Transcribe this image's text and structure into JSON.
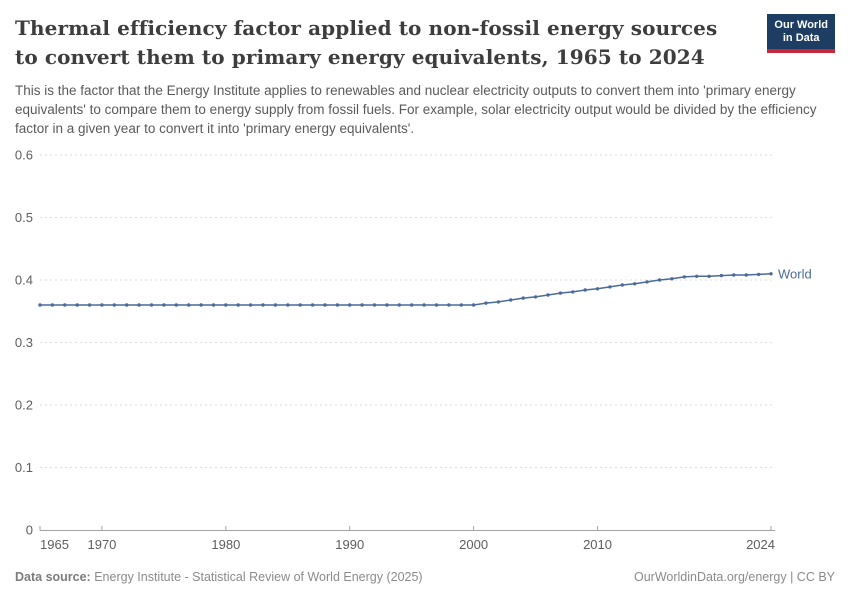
{
  "header": {
    "title_lines": [
      "Thermal efficiency factor applied to non-fossil energy sources",
      "to convert them to primary energy equivalents, 1965 to 2024"
    ],
    "subtitle": "This is the factor that the Energy Institute applies to renewables and nuclear electricity outputs to convert them into 'primary energy equivalents' to compare them to energy supply from fossil fuels. For example, solar electricity output would be divided by the efficiency factor in a given year to convert it into 'primary energy equivalents'."
  },
  "logo": {
    "line1": "Our World",
    "line2": "in Data",
    "background_color": "#1d3d63",
    "accent_color": "#c7273a"
  },
  "chart_data": {
    "type": "line",
    "title": "Thermal efficiency factor applied to non-fossil energy sources to convert them to primary energy equivalents, 1965 to 2024",
    "xlabel": "",
    "ylabel": "",
    "xlim": [
      1965,
      2024
    ],
    "ylim": [
      0,
      0.6
    ],
    "grid": "horizontal-dashed",
    "legend_position": "end-of-line-label",
    "yticks": [
      0,
      0.1,
      0.2,
      0.3,
      0.4,
      0.5,
      0.6
    ],
    "ytick_labels": [
      "0",
      "0.1",
      "0.2",
      "0.3",
      "0.4",
      "0.5",
      "0.6"
    ],
    "xticks": [
      1965,
      1970,
      1980,
      1990,
      2000,
      2010,
      2024
    ],
    "series": [
      {
        "name": "World",
        "color": "#4c6a9c",
        "x": [
          1965,
          1966,
          1967,
          1968,
          1969,
          1970,
          1971,
          1972,
          1973,
          1974,
          1975,
          1976,
          1977,
          1978,
          1979,
          1980,
          1981,
          1982,
          1983,
          1984,
          1985,
          1986,
          1987,
          1988,
          1989,
          1990,
          1991,
          1992,
          1993,
          1994,
          1995,
          1996,
          1997,
          1998,
          1999,
          2000,
          2001,
          2002,
          2003,
          2004,
          2005,
          2006,
          2007,
          2008,
          2009,
          2010,
          2011,
          2012,
          2013,
          2014,
          2015,
          2016,
          2017,
          2018,
          2019,
          2020,
          2021,
          2022,
          2023,
          2024
        ],
        "values": [
          0.36,
          0.36,
          0.36,
          0.36,
          0.36,
          0.36,
          0.36,
          0.36,
          0.36,
          0.36,
          0.36,
          0.36,
          0.36,
          0.36,
          0.36,
          0.36,
          0.36,
          0.36,
          0.36,
          0.36,
          0.36,
          0.36,
          0.36,
          0.36,
          0.36,
          0.36,
          0.36,
          0.36,
          0.36,
          0.36,
          0.36,
          0.36,
          0.36,
          0.36,
          0.36,
          0.36,
          0.363,
          0.365,
          0.368,
          0.371,
          0.373,
          0.376,
          0.379,
          0.381,
          0.384,
          0.386,
          0.389,
          0.392,
          0.394,
          0.397,
          0.4,
          0.402,
          0.405,
          0.406,
          0.406,
          0.407,
          0.408,
          0.408,
          0.409,
          0.41
        ]
      }
    ]
  },
  "footer": {
    "datasource_label": "Data source:",
    "datasource_text": " Energy Institute - Statistical Review of World Energy (2025)",
    "link_text": "OurWorldinData.org/energy | CC BY"
  }
}
